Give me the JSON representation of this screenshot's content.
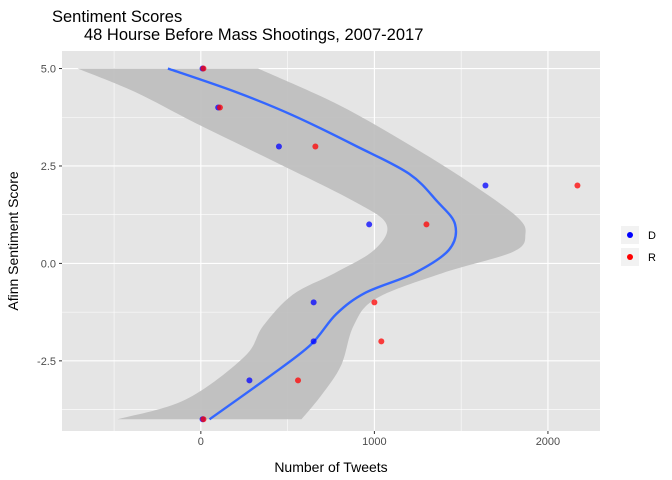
{
  "chart_data": {
    "type": "scatter",
    "title": "Sentiment Scores",
    "subtitle": "48 Hourse Before Mass Shootings, 2007-2017",
    "xlabel": "Number of Tweets",
    "ylabel": "Afinn Sentiment Score",
    "xlim": [
      -800,
      2300
    ],
    "ylim": [
      -4.3,
      5.45
    ],
    "x_ticks": [
      0,
      1000,
      2000
    ],
    "x_tick_labels": [
      "0",
      "1000",
      "2000"
    ],
    "y_ticks": [
      5.0,
      2.5,
      0.0,
      -2.5
    ],
    "y_tick_labels": [
      "5.0",
      "2.5",
      "0.0",
      "-2.5"
    ],
    "grid": true,
    "legend_position": "right",
    "colors": {
      "panel_bg": "#e5e5e5",
      "grid": "#ffffff",
      "band": "#bdbdbd",
      "smooth_line": "#3366ff"
    },
    "series": [
      {
        "name": "D",
        "color": "#0000ff",
        "points": [
          {
            "x": 10,
            "y": 5
          },
          {
            "x": 100,
            "y": 4
          },
          {
            "x": 450,
            "y": 3
          },
          {
            "x": 1640,
            "y": 2
          },
          {
            "x": 970,
            "y": 1
          },
          {
            "x": 650,
            "y": -1
          },
          {
            "x": 650,
            "y": -2
          },
          {
            "x": 280,
            "y": -3
          },
          {
            "x": 10,
            "y": -4
          }
        ]
      },
      {
        "name": "R",
        "color": "#ff0000",
        "points": [
          {
            "x": 15,
            "y": 5
          },
          {
            "x": 110,
            "y": 4
          },
          {
            "x": 660,
            "y": 3
          },
          {
            "x": 2170,
            "y": 2
          },
          {
            "x": 1300,
            "y": 1
          },
          {
            "x": 1000,
            "y": -1
          },
          {
            "x": 1040,
            "y": -2
          },
          {
            "x": 560,
            "y": -3
          },
          {
            "x": 15,
            "y": -4
          }
        ]
      }
    ],
    "smooth": {
      "points": [
        {
          "x": -190,
          "y": 5.0
        },
        {
          "x": 200,
          "y": 4.4
        },
        {
          "x": 530,
          "y": 3.8
        },
        {
          "x": 900,
          "y": 3.0
        },
        {
          "x": 1200,
          "y": 2.3
        },
        {
          "x": 1360,
          "y": 1.6
        },
        {
          "x": 1465,
          "y": 1.0
        },
        {
          "x": 1430,
          "y": 0.35
        },
        {
          "x": 1230,
          "y": -0.25
        },
        {
          "x": 950,
          "y": -0.75
        },
        {
          "x": 780,
          "y": -1.3
        },
        {
          "x": 630,
          "y": -2.1
        },
        {
          "x": 380,
          "y": -2.95
        },
        {
          "x": 50,
          "y": -4.0
        }
      ],
      "upper": [
        {
          "x": 330,
          "y": 5.0
        },
        {
          "x": 780,
          "y": 4.1
        },
        {
          "x": 1180,
          "y": 3.1
        },
        {
          "x": 1540,
          "y": 2.1
        },
        {
          "x": 1820,
          "y": 1.2
        },
        {
          "x": 1870,
          "y": 0.75
        },
        {
          "x": 1800,
          "y": 0.3
        },
        {
          "x": 1390,
          "y": -0.25
        },
        {
          "x": 1010,
          "y": -0.9
        },
        {
          "x": 880,
          "y": -1.6
        },
        {
          "x": 810,
          "y": -2.6
        },
        {
          "x": 700,
          "y": -3.35
        },
        {
          "x": 580,
          "y": -4.0
        }
      ],
      "lower": [
        {
          "x": -710,
          "y": 5.0
        },
        {
          "x": -380,
          "y": 4.4
        },
        {
          "x": -30,
          "y": 3.6
        },
        {
          "x": 430,
          "y": 2.6
        },
        {
          "x": 880,
          "y": 1.6
        },
        {
          "x": 1070,
          "y": 1.0
        },
        {
          "x": 1000,
          "y": 0.35
        },
        {
          "x": 770,
          "y": -0.25
        },
        {
          "x": 530,
          "y": -0.8
        },
        {
          "x": 360,
          "y": -1.6
        },
        {
          "x": 250,
          "y": -2.4
        },
        {
          "x": -90,
          "y": -3.5
        },
        {
          "x": -480,
          "y": -4.0
        }
      ]
    }
  }
}
